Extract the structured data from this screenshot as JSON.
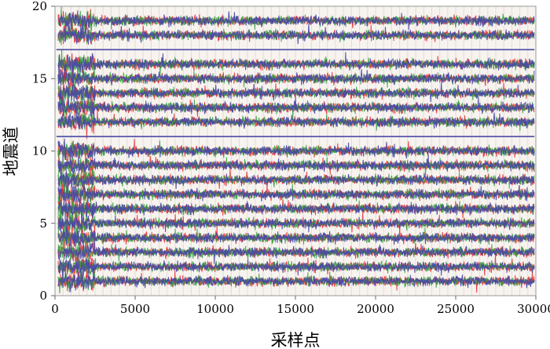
{
  "chart_data": {
    "type": "line",
    "xlabel": "采样点",
    "ylabel": "地震道",
    "xlim": [
      0,
      30000
    ],
    "ylim": [
      0,
      20
    ],
    "xticks": [
      0,
      5000,
      10000,
      15000,
      20000,
      25000,
      30000
    ],
    "yticks": [
      0,
      5,
      10,
      15,
      20
    ],
    "grid": true,
    "trace_offsets": [
      1,
      2,
      3,
      4,
      5,
      6,
      7,
      8,
      9,
      10,
      12,
      13,
      14,
      15,
      16,
      18,
      19
    ],
    "flat_traces": [
      11,
      17
    ],
    "series_colors": [
      "#e8262a",
      "#2f9e3a",
      "#4a49a6"
    ],
    "background": "#f7f3ef"
  }
}
